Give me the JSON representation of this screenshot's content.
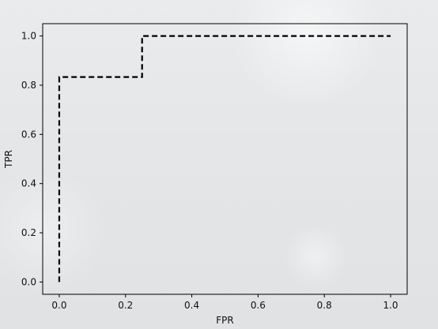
{
  "chart_data": {
    "type": "line",
    "title": "",
    "xlabel": "FPR",
    "ylabel": "TPR",
    "xlim": [
      -0.05,
      1.05
    ],
    "ylim": [
      -0.05,
      1.05
    ],
    "grid": false,
    "xticks": [
      0.0,
      0.2,
      0.4,
      0.6,
      0.8,
      1.0
    ],
    "yticks": [
      0.0,
      0.2,
      0.4,
      0.6,
      0.8,
      1.0
    ],
    "xtick_labels": [
      "0.0",
      "0.2",
      "0.4",
      "0.6",
      "0.8",
      "1.0"
    ],
    "ytick_labels": [
      "0.0",
      "0.2",
      "0.4",
      "0.6",
      "0.8",
      "1.0"
    ],
    "series": [
      {
        "style": "dashed",
        "color": "#000000",
        "x": [
          0.0,
          0.0,
          0.25,
          0.25,
          1.0
        ],
        "y": [
          0.0,
          0.833,
          0.833,
          1.0,
          1.0
        ]
      }
    ]
  }
}
